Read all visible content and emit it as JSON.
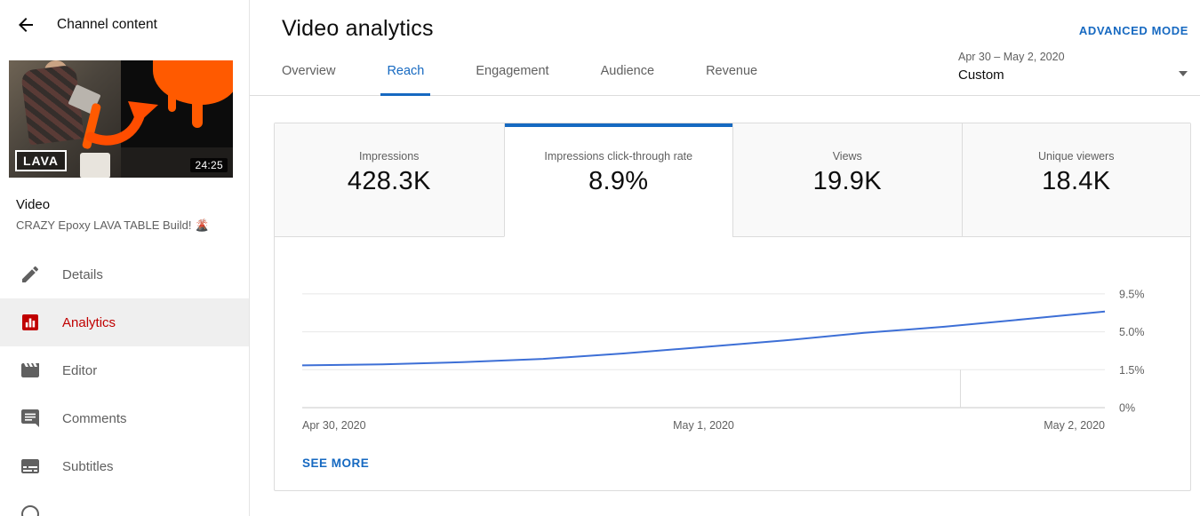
{
  "colors": {
    "accent_blue": "#1669c1",
    "chart_line_blue": "#3d6fd6",
    "active_red": "#c00000",
    "thumbnail_orange": "#ff5a00"
  },
  "sidebar": {
    "title": "Channel content",
    "thumbnail": {
      "badge": "LAVA",
      "duration": "24:25"
    },
    "video_label": "Video",
    "video_title": "CRAZY Epoxy LAVA TABLE Build! 🌋",
    "menu": [
      {
        "label": "Details",
        "icon": "pencil-icon"
      },
      {
        "label": "Analytics",
        "icon": "analytics-icon",
        "active": true
      },
      {
        "label": "Editor",
        "icon": "editor-icon"
      },
      {
        "label": "Comments",
        "icon": "comments-icon"
      },
      {
        "label": "Subtitles",
        "icon": "subtitles-icon"
      }
    ]
  },
  "main": {
    "title": "Video analytics",
    "advanced_mode_label": "ADVANCED MODE",
    "tabs": [
      {
        "label": "Overview"
      },
      {
        "label": "Reach",
        "active": true
      },
      {
        "label": "Engagement"
      },
      {
        "label": "Audience"
      },
      {
        "label": "Revenue"
      }
    ],
    "date_filter": {
      "range": "Apr 30 – May 2, 2020",
      "preset": "Custom"
    },
    "metric_cards": [
      {
        "label": "Impressions",
        "value": "428.3K"
      },
      {
        "label": "Impressions click-through rate",
        "value": "8.9%",
        "active": true
      },
      {
        "label": "Views",
        "value": "19.9K"
      },
      {
        "label": "Unique viewers",
        "value": "18.4K"
      }
    ],
    "see_more_label": "SEE MORE"
  },
  "chart_data": {
    "type": "line",
    "title": "Impressions click-through rate",
    "series_name": "Impressions click-through rate (%)",
    "x_unit": "days since Apr 30, 2020",
    "x": [
      0,
      0.2,
      0.4,
      0.6,
      0.8,
      1.0,
      1.2,
      1.4,
      1.6,
      1.8,
      2.0
    ],
    "values": [
      1.9,
      2.0,
      2.2,
      2.5,
      3.0,
      3.6,
      4.2,
      4.9,
      5.6,
      6.5,
      7.4
    ],
    "y_gridlines": [
      {
        "value": 0,
        "label": "0%"
      },
      {
        "value": 1.5,
        "label": "1.5%"
      },
      {
        "value": 5.0,
        "label": "5.0%"
      },
      {
        "value": 9.5,
        "label": "9.5%"
      }
    ],
    "x_ticks": [
      {
        "label": "Apr 30, 2020",
        "pos": 0,
        "anchor": "start"
      },
      {
        "label": "May 1, 2020",
        "pos": 0.5,
        "anchor": "middle"
      },
      {
        "label": "May 2, 2020",
        "pos": 1,
        "anchor": "end"
      }
    ],
    "marker_pos": 0.82,
    "ylim": [
      0,
      10.5
    ],
    "grid": true,
    "legend": false
  }
}
